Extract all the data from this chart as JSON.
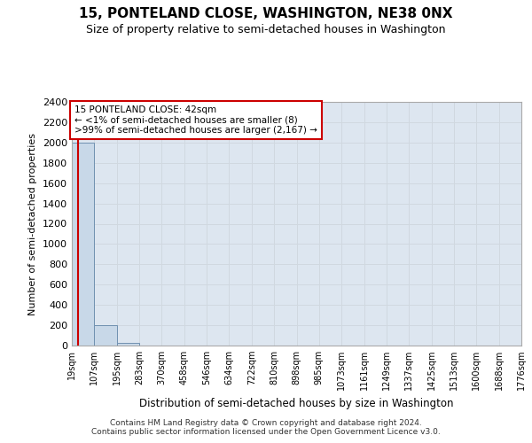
{
  "title": "15, PONTELAND CLOSE, WASHINGTON, NE38 0NX",
  "subtitle": "Size of property relative to semi-detached houses in Washington",
  "xlabel": "Distribution of semi-detached houses by size in Washington",
  "ylabel": "Number of semi-detached properties",
  "footer_line1": "Contains HM Land Registry data © Crown copyright and database right 2024.",
  "footer_line2": "Contains public sector information licensed under the Open Government Licence v3.0.",
  "bin_labels": [
    "19sqm",
    "107sqm",
    "195sqm",
    "283sqm",
    "370sqm",
    "458sqm",
    "546sqm",
    "634sqm",
    "722sqm",
    "810sqm",
    "898sqm",
    "985sqm",
    "1073sqm",
    "1161sqm",
    "1249sqm",
    "1337sqm",
    "1425sqm",
    "1513sqm",
    "1600sqm",
    "1688sqm",
    "1776sqm"
  ],
  "bar_heights": [
    2000,
    200,
    25,
    0,
    0,
    0,
    0,
    0,
    0,
    0,
    0,
    0,
    0,
    0,
    0,
    0,
    0,
    0,
    0,
    0
  ],
  "bar_color": "#c8d8e8",
  "bar_edge_color": "#7090b0",
  "ylim": [
    0,
    2400
  ],
  "yticks": [
    0,
    200,
    400,
    600,
    800,
    1000,
    1200,
    1400,
    1600,
    1800,
    2000,
    2200,
    2400
  ],
  "property_size_sqm": 42,
  "bin_min": 19,
  "bin_width": 88,
  "annotation_title": "15 PONTELAND CLOSE: 42sqm",
  "annotation_line1": "← <1% of semi-detached houses are smaller (8)",
  "annotation_line2": ">99% of semi-detached houses are larger (2,167) →",
  "annotation_box_facecolor": "#ffffff",
  "annotation_box_edgecolor": "#cc0000",
  "red_line_color": "#cc0000",
  "grid_color": "#d0d8e0",
  "background_color": "#dde6f0",
  "fig_facecolor": "#ffffff"
}
